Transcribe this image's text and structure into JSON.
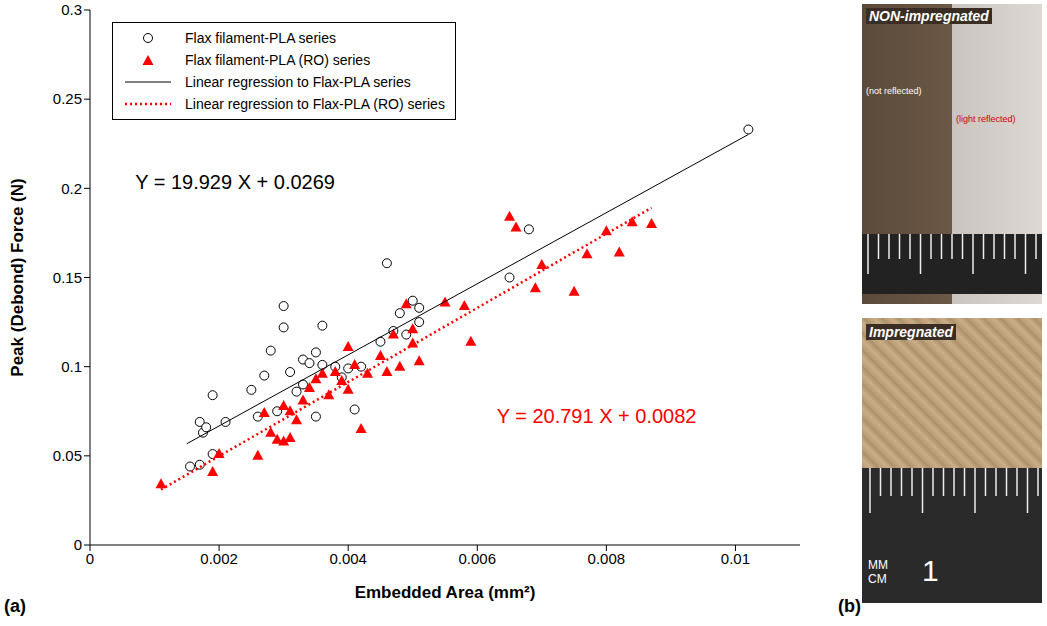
{
  "chart_data": {
    "type": "scatter",
    "panel_label": "(a)",
    "x_label": "Embedded Area  (mm²)",
    "y_label": "Peak (Debond) Force  (N)",
    "xlim": [
      0,
      0.011
    ],
    "ylim": [
      0,
      0.3
    ],
    "xticks": [
      0,
      0.002,
      0.004,
      0.006,
      0.008,
      0.01
    ],
    "yticks": [
      0,
      0.05,
      0.1,
      0.15,
      0.2,
      0.25,
      0.3
    ],
    "grid": false,
    "legend": "top-left",
    "series": [
      {
        "name": "Flax filament-PLA series",
        "type": "scatter",
        "color": "#000000",
        "marker": "circle_open",
        "x": [
          0.00155,
          0.0017,
          0.0017,
          0.00175,
          0.0018,
          0.0019,
          0.0019,
          0.0021,
          0.0025,
          0.0026,
          0.0027,
          0.0028,
          0.0029,
          0.003,
          0.003,
          0.0031,
          0.0032,
          0.0033,
          0.0033,
          0.0034,
          0.0035,
          0.0035,
          0.0036,
          0.0036,
          0.0038,
          0.0039,
          0.004,
          0.0041,
          0.0042,
          0.0045,
          0.0046,
          0.0047,
          0.0048,
          0.0049,
          0.005,
          0.0051,
          0.0051,
          0.0065,
          0.0068,
          0.0102
        ],
        "values": [
          0.044,
          0.045,
          0.069,
          0.063,
          0.066,
          0.084,
          0.051,
          0.069,
          0.087,
          0.072,
          0.095,
          0.109,
          0.075,
          0.134,
          0.122,
          0.097,
          0.086,
          0.104,
          0.09,
          0.102,
          0.108,
          0.072,
          0.123,
          0.101,
          0.1,
          0.094,
          0.099,
          0.076,
          0.1,
          0.114,
          0.158,
          0.12,
          0.13,
          0.118,
          0.137,
          0.133,
          0.125,
          0.15,
          0.177,
          0.233
        ]
      },
      {
        "name": "Flax filament-PLA (RO) series",
        "type": "scatter",
        "color": "#ff0000",
        "marker": "triangle",
        "x": [
          0.0011,
          0.0019,
          0.002,
          0.0026,
          0.0027,
          0.0028,
          0.0029,
          0.003,
          0.003,
          0.0031,
          0.0031,
          0.0032,
          0.0033,
          0.0034,
          0.0035,
          0.0036,
          0.0037,
          0.0038,
          0.0039,
          0.004,
          0.004,
          0.0041,
          0.0042,
          0.0043,
          0.0045,
          0.0046,
          0.0047,
          0.0048,
          0.0049,
          0.005,
          0.005,
          0.0051,
          0.0055,
          0.0058,
          0.0059,
          0.0065,
          0.0066,
          0.0069,
          0.007,
          0.0075,
          0.0077,
          0.008,
          0.0082,
          0.0084,
          0.0087
        ],
        "values": [
          0.034,
          0.041,
          0.051,
          0.05,
          0.074,
          0.063,
          0.059,
          0.078,
          0.058,
          0.075,
          0.06,
          0.07,
          0.081,
          0.088,
          0.093,
          0.096,
          0.084,
          0.097,
          0.092,
          0.111,
          0.087,
          0.101,
          0.065,
          0.096,
          0.106,
          0.097,
          0.118,
          0.1,
          0.135,
          0.113,
          0.121,
          0.103,
          0.136,
          0.134,
          0.114,
          0.184,
          0.178,
          0.144,
          0.157,
          0.142,
          0.163,
          0.176,
          0.164,
          0.181,
          0.18
        ]
      },
      {
        "name": "Linear regression to Flax-PLA series",
        "type": "line",
        "color": "#000000",
        "line_style": "solid",
        "equation": "Y = 19.929 X + 0.0269",
        "x": [
          0.0015,
          0.0102
        ],
        "values": [
          0.0568,
          0.2302
        ]
      },
      {
        "name": "Linear regression to Flax-PLA (RO) series",
        "type": "line",
        "color": "#ff0000",
        "line_style": "dotted",
        "equation": "Y = 20.791 X + 0.0082",
        "x": [
          0.0011,
          0.0087
        ],
        "values": [
          0.0311,
          0.1891
        ]
      }
    ]
  },
  "panel_b": {
    "panel_label": "(b)",
    "top_title": "NON-impregnated",
    "top_left_note": "(not reflected)",
    "top_right_note": "(light reflected)",
    "bottom_title": "Impregnated",
    "ruler_labels": [
      "MM",
      "CM",
      "1"
    ]
  }
}
